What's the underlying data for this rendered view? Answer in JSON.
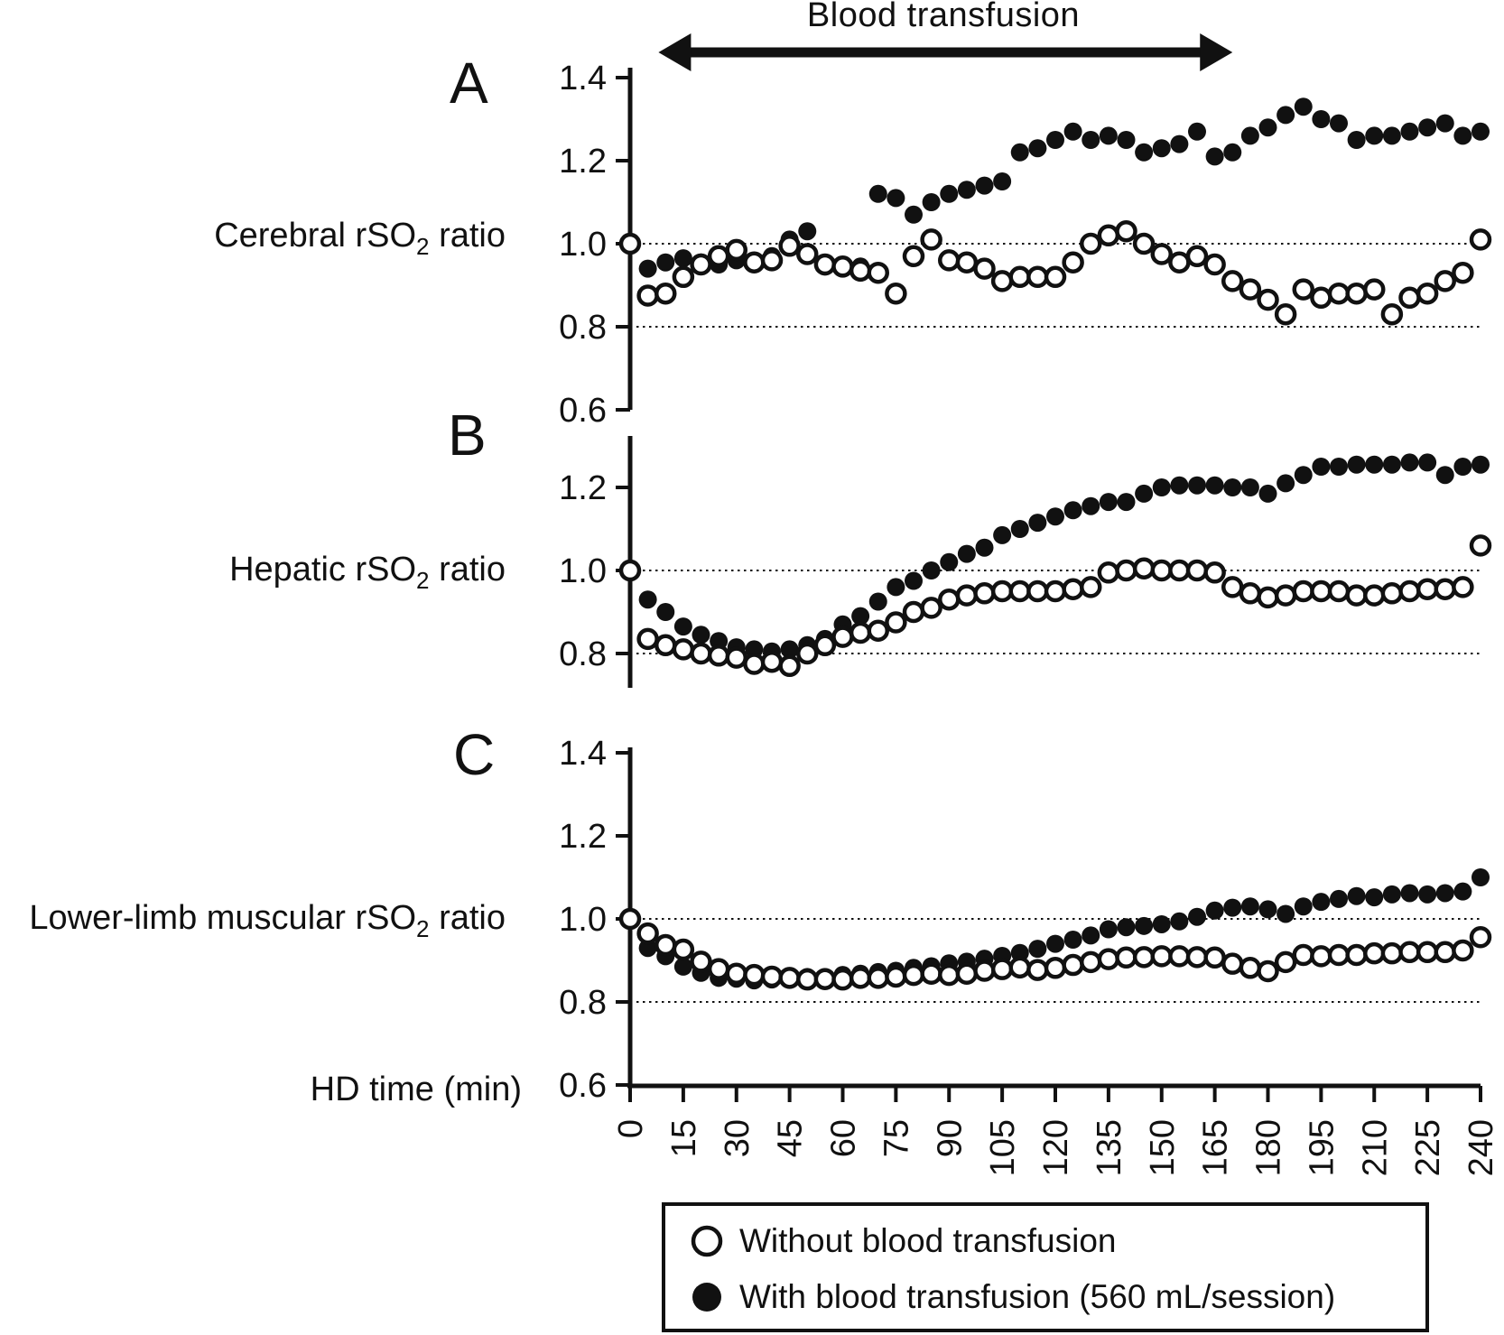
{
  "title": "Blood transfusion",
  "panels_meta": [
    {
      "letter": "A",
      "label_pre": "Cerebral rSO",
      "label_sub": "2",
      "label_post": " ratio"
    },
    {
      "letter": "B",
      "label_pre": "Hepatic rSO",
      "label_sub": "2",
      "label_post": " ratio"
    },
    {
      "letter": "C",
      "label_pre": "Lower-limb muscular rSO",
      "label_sub": "2",
      "label_post": " ratio"
    }
  ],
  "xlabel": "HD time (min)",
  "legend": {
    "items": [
      {
        "marker": "open-circle",
        "label": "Without blood transfusion"
      },
      {
        "marker": "filled-circle",
        "label": "With blood transfusion (560 mL/session)"
      }
    ]
  },
  "colors": {
    "ink": "#111111",
    "marker_fill": "#111111",
    "open_fill": "#ffffff"
  },
  "chart_data": {
    "type": "scatter",
    "xlabel": "HD time (min)",
    "x_ticks": [
      0,
      15,
      30,
      45,
      60,
      75,
      90,
      105,
      120,
      135,
      150,
      165,
      180,
      195,
      210,
      225,
      240
    ],
    "x_minutes": [
      0,
      5,
      10,
      15,
      20,
      25,
      30,
      35,
      40,
      45,
      50,
      55,
      60,
      65,
      70,
      75,
      80,
      85,
      90,
      95,
      100,
      105,
      110,
      115,
      120,
      125,
      130,
      135,
      140,
      145,
      150,
      155,
      160,
      165,
      170,
      175,
      180,
      185,
      190,
      195,
      200,
      205,
      210,
      215,
      220,
      225,
      230,
      235,
      240
    ],
    "annotation": {
      "label": "Blood transfusion",
      "x_start_min": 8,
      "x_end_min": 170
    },
    "legend_position": "bottom",
    "panels": [
      {
        "id": "A",
        "ylabel": "Cerebral rSO2 ratio",
        "yticks": [
          1.4,
          1.2,
          1.0,
          0.8,
          0.6
        ],
        "ylim": [
          0.6,
          1.42
        ],
        "gridlines": [
          1.0,
          0.8
        ],
        "series": [
          {
            "name": "With blood transfusion (560 mL/session)",
            "marker": "filled",
            "values": [
              1.0,
              0.94,
              0.955,
              0.965,
              0.955,
              0.95,
              0.96,
              0.955,
              0.97,
              1.01,
              1.03,
              0.945,
              0.94,
              0.945,
              1.12,
              1.11,
              1.07,
              1.1,
              1.12,
              1.13,
              1.14,
              1.15,
              1.22,
              1.23,
              1.25,
              1.27,
              1.25,
              1.26,
              1.25,
              1.22,
              1.23,
              1.24,
              1.27,
              1.21,
              1.22,
              1.26,
              1.28,
              1.31,
              1.33,
              1.3,
              1.29,
              1.25,
              1.26,
              1.26,
              1.27,
              1.28,
              1.29,
              1.26,
              1.27
            ]
          },
          {
            "name": "Without blood transfusion",
            "marker": "open",
            "values": [
              1.0,
              0.875,
              0.88,
              0.92,
              0.95,
              0.97,
              0.985,
              0.955,
              0.96,
              0.995,
              0.975,
              0.95,
              0.945,
              0.935,
              0.93,
              0.88,
              0.97,
              1.01,
              0.96,
              0.955,
              0.94,
              0.91,
              0.92,
              0.92,
              0.92,
              0.955,
              1.0,
              1.02,
              1.03,
              1.0,
              0.975,
              0.955,
              0.97,
              0.95,
              0.91,
              0.89,
              0.865,
              0.83,
              0.89,
              0.87,
              0.88,
              0.88,
              0.89,
              0.83,
              0.87,
              0.88,
              0.91,
              0.93,
              1.01
            ]
          }
        ]
      },
      {
        "id": "B",
        "ylabel": "Hepatic rSO2 ratio",
        "yticks": [
          1.2,
          1.0,
          0.8
        ],
        "ylim": [
          0.72,
          1.33
        ],
        "gridlines": [
          1.0,
          0.8
        ],
        "series": [
          {
            "name": "With blood transfusion (560 mL/session)",
            "marker": "filled",
            "values": [
              1.0,
              0.93,
              0.9,
              0.865,
              0.845,
              0.83,
              0.815,
              0.81,
              0.805,
              0.81,
              0.82,
              0.835,
              0.87,
              0.89,
              0.925,
              0.96,
              0.975,
              1.0,
              1.02,
              1.04,
              1.055,
              1.085,
              1.1,
              1.115,
              1.13,
              1.145,
              1.155,
              1.165,
              1.165,
              1.185,
              1.2,
              1.205,
              1.205,
              1.205,
              1.2,
              1.2,
              1.185,
              1.21,
              1.23,
              1.25,
              1.25,
              1.255,
              1.255,
              1.255,
              1.26,
              1.26,
              1.23,
              1.25,
              1.255
            ]
          },
          {
            "name": "Without blood transfusion",
            "marker": "open",
            "values": [
              1.0,
              0.835,
              0.82,
              0.81,
              0.8,
              0.795,
              0.79,
              0.775,
              0.78,
              0.77,
              0.8,
              0.82,
              0.84,
              0.85,
              0.855,
              0.875,
              0.9,
              0.91,
              0.93,
              0.94,
              0.945,
              0.95,
              0.95,
              0.95,
              0.95,
              0.955,
              0.96,
              0.995,
              1.0,
              1.005,
              1.0,
              1.0,
              1.0,
              0.995,
              0.96,
              0.945,
              0.935,
              0.94,
              0.95,
              0.95,
              0.95,
              0.94,
              0.94,
              0.945,
              0.95,
              0.955,
              0.955,
              0.96,
              1.06
            ]
          }
        ]
      },
      {
        "id": "C",
        "ylabel": "Lower-limb muscular rSO2 ratio",
        "yticks": [
          1.4,
          1.2,
          1.0,
          0.8,
          0.6
        ],
        "ylim": [
          0.6,
          1.4
        ],
        "gridlines": [
          1.0,
          0.8
        ],
        "series": [
          {
            "name": "With blood transfusion (560 mL/session)",
            "marker": "filled",
            "values": [
              1.0,
              0.93,
              0.91,
              0.885,
              0.87,
              0.858,
              0.856,
              0.852,
              0.854,
              0.857,
              0.86,
              0.86,
              0.865,
              0.868,
              0.872,
              0.875,
              0.882,
              0.886,
              0.893,
              0.897,
              0.904,
              0.911,
              0.918,
              0.928,
              0.94,
              0.95,
              0.96,
              0.975,
              0.98,
              0.983,
              0.987,
              0.994,
              1.005,
              1.02,
              1.027,
              1.03,
              1.023,
              1.012,
              1.03,
              1.041,
              1.048,
              1.055,
              1.052,
              1.059,
              1.062,
              1.059,
              1.062,
              1.066,
              1.1
            ]
          },
          {
            "name": "Without blood transfusion",
            "marker": "open",
            "values": [
              1.0,
              0.965,
              0.937,
              0.926,
              0.897,
              0.879,
              0.868,
              0.865,
              0.861,
              0.858,
              0.854,
              0.855,
              0.854,
              0.858,
              0.858,
              0.861,
              0.865,
              0.868,
              0.865,
              0.868,
              0.875,
              0.879,
              0.883,
              0.877,
              0.882,
              0.889,
              0.896,
              0.903,
              0.907,
              0.908,
              0.91,
              0.91,
              0.908,
              0.907,
              0.892,
              0.882,
              0.874,
              0.896,
              0.913,
              0.91,
              0.913,
              0.913,
              0.917,
              0.917,
              0.92,
              0.92,
              0.92,
              0.924,
              0.956
            ]
          }
        ]
      }
    ]
  }
}
